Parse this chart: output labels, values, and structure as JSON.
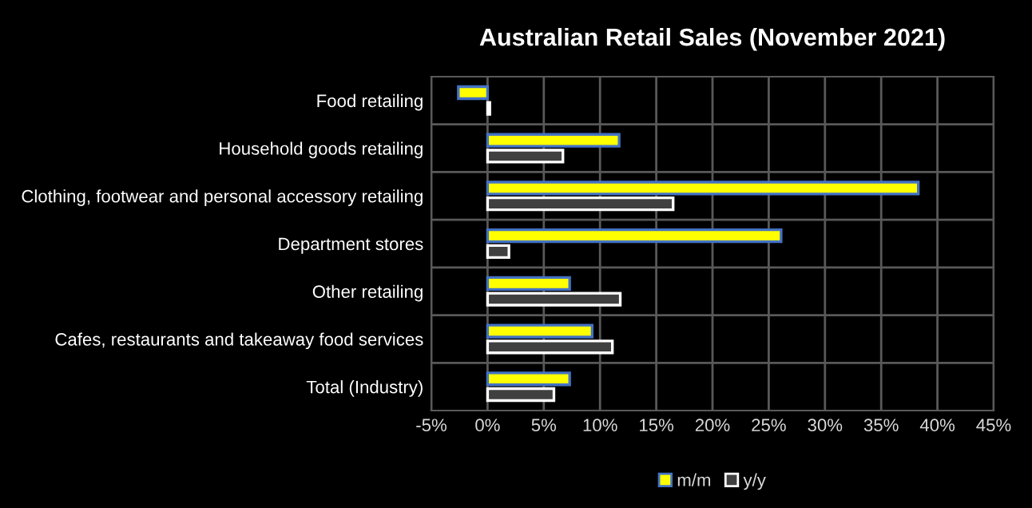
{
  "chart_data": {
    "type": "bar",
    "orientation": "horizontal",
    "title": "Australian Retail Sales (November 2021)",
    "categories": [
      "Food retailing",
      "Household goods retailing",
      "Clothing, footwear and personal accessory retailing",
      "Department stores",
      "Other retailing",
      "Cafes, restaurants and takeaway food services",
      "Total (Industry)"
    ],
    "series": [
      {
        "name": "m/m",
        "color": "#ffff00",
        "values": [
          -2.6,
          11.7,
          38.3,
          26.1,
          7.3,
          9.3,
          7.3
        ]
      },
      {
        "name": "y/y",
        "color": "#404040",
        "values": [
          0.2,
          6.7,
          16.5,
          1.9,
          11.8,
          11.1,
          5.9
        ]
      }
    ],
    "xlim": [
      -5,
      45
    ],
    "xticks": [
      {
        "value": -5,
        "label": "-5%"
      },
      {
        "value": 0,
        "label": "0%"
      },
      {
        "value": 5,
        "label": "5%"
      },
      {
        "value": 10,
        "label": "10%"
      },
      {
        "value": 15,
        "label": "15%"
      },
      {
        "value": 20,
        "label": "20%"
      },
      {
        "value": 25,
        "label": "25%"
      },
      {
        "value": 30,
        "label": "30%"
      },
      {
        "value": 35,
        "label": "35%"
      },
      {
        "value": 40,
        "label": "40%"
      },
      {
        "value": 45,
        "label": "45%"
      }
    ],
    "grid": true,
    "legend": "bottom"
  }
}
